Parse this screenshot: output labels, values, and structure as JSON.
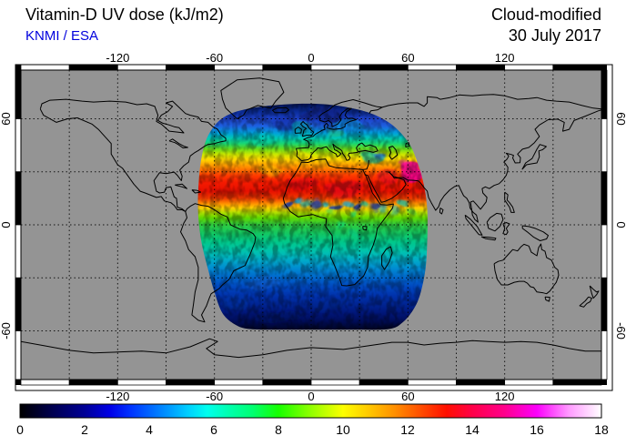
{
  "header": {
    "title": "Vitamin-D UV dose (kJ/m2)",
    "source": "KNMI / ESA",
    "product_type": "Cloud-modified",
    "product_date": "30 July 2017"
  },
  "colors": {
    "background": "#ffffff",
    "map_gray": "#949494",
    "coastline": "#000000",
    "gridline": "#000000",
    "source_text_blue": "#0000dd",
    "frame_black": "#000000",
    "frame_white": "#ffffff"
  },
  "map_axes": {
    "lon_ticks": [
      {
        "value": -120,
        "label": "-120"
      },
      {
        "value": -60,
        "label": "-60"
      },
      {
        "value": 0,
        "label": "0"
      },
      {
        "value": 60,
        "label": "60"
      },
      {
        "value": 120,
        "label": "120"
      }
    ],
    "lat_ticks": [
      {
        "value": 60,
        "label": "60"
      },
      {
        "value": 0,
        "label": "0"
      },
      {
        "value": -60,
        "label": "-60"
      }
    ],
    "grid_interval_deg": 30
  },
  "colorbar": {
    "min": 0,
    "max": 18,
    "tick_labels": [
      "0",
      "2",
      "4",
      "6",
      "8",
      "10",
      "12",
      "14",
      "16",
      "18"
    ],
    "tick_values": [
      0,
      2,
      4,
      6,
      8,
      10,
      12,
      14,
      16,
      18
    ],
    "stops": [
      [
        0,
        "#000000"
      ],
      [
        1,
        "#00004f"
      ],
      [
        2,
        "#000096"
      ],
      [
        2.8,
        "#0000e8"
      ],
      [
        3.4,
        "#0031ff"
      ],
      [
        4,
        "#0064ff"
      ],
      [
        4.6,
        "#0098ff"
      ],
      [
        5.2,
        "#00cfff"
      ],
      [
        5.8,
        "#00ffee"
      ],
      [
        6.4,
        "#00ffb4"
      ],
      [
        7.2,
        "#00ff72"
      ],
      [
        8,
        "#16ff00"
      ],
      [
        9,
        "#90ff00"
      ],
      [
        10,
        "#fdff00"
      ],
      [
        10.8,
        "#ffc800"
      ],
      [
        11.6,
        "#ff8f00"
      ],
      [
        12.4,
        "#ff4e00"
      ],
      [
        13.2,
        "#ff0f00"
      ],
      [
        14,
        "#ff0048"
      ],
      [
        15,
        "#ff008c"
      ],
      [
        16,
        "#fb00fb"
      ],
      [
        17,
        "#ff9bff"
      ],
      [
        18,
        "#ffffff"
      ]
    ]
  },
  "chart_data": {
    "type": "heatmap",
    "title": "Vitamin-D UV dose (kJ/m2)",
    "scale_units": "kJ/m2",
    "scale_range": [
      0,
      18
    ],
    "scale_ticks": [
      0,
      2,
      4,
      6,
      8,
      10,
      12,
      14,
      16,
      18
    ],
    "swath_lon_range": [
      -70,
      72
    ],
    "swath_lat_range": [
      -59,
      68.5
    ],
    "lat_band_values": [
      [
        68.5,
        "#03114f"
      ],
      [
        64,
        "#0b2d9a"
      ],
      [
        60,
        "#1d41c8"
      ],
      [
        56,
        "#1e5fe0"
      ],
      [
        52,
        "#00a0dc"
      ],
      [
        49,
        "#00c8b4"
      ],
      [
        46,
        "#19d773"
      ],
      [
        43,
        "#66dd1c"
      ],
      [
        40,
        "#c8e800"
      ],
      [
        37,
        "#ffd800"
      ],
      [
        34,
        "#ffa300"
      ],
      [
        31,
        "#ff7100"
      ],
      [
        28,
        "#ff3c00"
      ],
      [
        24,
        "#f51a00"
      ],
      [
        19,
        "#e81000"
      ],
      [
        15,
        "#ef3a00"
      ],
      [
        12,
        "#ff9000"
      ],
      [
        9.5,
        "#ffd000"
      ],
      [
        7,
        "#b4e000"
      ],
      [
        4,
        "#62d800"
      ],
      [
        0,
        "#2ecc40"
      ],
      [
        -5,
        "#12c863"
      ],
      [
        -10,
        "#00c88c"
      ],
      [
        -15,
        "#00c3ad"
      ],
      [
        -20,
        "#00abc8"
      ],
      [
        -25,
        "#0089d2"
      ],
      [
        -30,
        "#0066cc"
      ],
      [
        -35,
        "#0048c0"
      ],
      [
        -40,
        "#0032ac"
      ],
      [
        -45,
        "#002492"
      ],
      [
        -50,
        "#001678"
      ],
      [
        -55,
        "#000c54"
      ],
      [
        -59,
        "#000528"
      ]
    ],
    "cloud_features": [
      [
        8,
        62,
        13,
        4.5,
        "#0a2087",
        0.75
      ],
      [
        -16,
        58,
        8,
        4,
        "#0d2fa8",
        0.6
      ],
      [
        -6,
        55.5,
        6,
        3,
        "#00b09b",
        0.5
      ],
      [
        24,
        57,
        9,
        3.5,
        "#0aa7d6",
        0.45
      ],
      [
        -30,
        48,
        8,
        4,
        "#00c9b0",
        0.4
      ],
      [
        14,
        52,
        6,
        2.5,
        "#35d23c",
        0.35
      ],
      [
        38,
        39.5,
        6,
        3,
        "#00bfae",
        0.7
      ],
      [
        41,
        40.5,
        3,
        2,
        "#2559e0",
        0.6
      ],
      [
        -25,
        31,
        8,
        3,
        "#ffd000",
        0.5
      ],
      [
        -5,
        23,
        10,
        4,
        "#e00018",
        0.5
      ],
      [
        20,
        21,
        12,
        5,
        "#dd0020",
        0.45
      ],
      [
        47,
        27,
        8,
        4,
        "#d4002a",
        0.45
      ],
      [
        63,
        30,
        5.5,
        5,
        "#f0008f",
        0.9
      ],
      [
        59,
        34,
        3,
        2,
        "#ff22aa",
        0.5
      ],
      [
        -13,
        11,
        3,
        2,
        "#1238b0",
        0.85
      ],
      [
        -7,
        12,
        2.5,
        1.8,
        "#00a8e8",
        0.8
      ],
      [
        -2,
        10.5,
        3,
        2,
        "#0fc3c3",
        0.7
      ],
      [
        4,
        11,
        3.5,
        2.2,
        "#1238b0",
        0.8
      ],
      [
        10,
        12,
        2.5,
        1.5,
        "#00b4d8",
        0.75
      ],
      [
        16,
        10,
        3,
        2,
        "#1238b0",
        0.8
      ],
      [
        22,
        11.5,
        3,
        2,
        "#00a8e8",
        0.7
      ],
      [
        28,
        9.5,
        3.5,
        2,
        "#0a2f9e",
        0.85
      ],
      [
        33,
        11,
        2.5,
        1.5,
        "#00c3a8",
        0.7
      ],
      [
        39,
        10,
        3,
        2,
        "#1238b0",
        0.8
      ],
      [
        44,
        9,
        2.5,
        2,
        "#00a8e8",
        0.6
      ],
      [
        25,
        6,
        2,
        1.5,
        "#00c87d",
        0.6
      ],
      [
        13,
        7,
        2.5,
        1.5,
        "#2ad060",
        0.5
      ],
      [
        57,
        12,
        4,
        2.5,
        "#00c3b4",
        0.7
      ],
      [
        63,
        8,
        3,
        2,
        "#35d23c",
        0.6
      ],
      [
        52,
        7,
        3,
        2,
        "#00a8e8",
        0.5
      ],
      [
        18,
        -2,
        4,
        2,
        "#00d890",
        0.4
      ],
      [
        28,
        -6,
        3,
        2,
        "#00ca9e",
        0.35
      ],
      [
        -30,
        -33,
        10,
        4,
        "#1f63d4",
        0.35
      ],
      [
        -48,
        -44,
        8,
        4,
        "#0a36a8",
        0.4
      ],
      [
        10,
        -45,
        12,
        4,
        "#0a2a92",
        0.35
      ],
      [
        -20,
        -52,
        15,
        4,
        "#051a66",
        0.5
      ],
      [
        -4,
        39,
        5,
        2.5,
        "#ffe000",
        0.4
      ]
    ]
  }
}
